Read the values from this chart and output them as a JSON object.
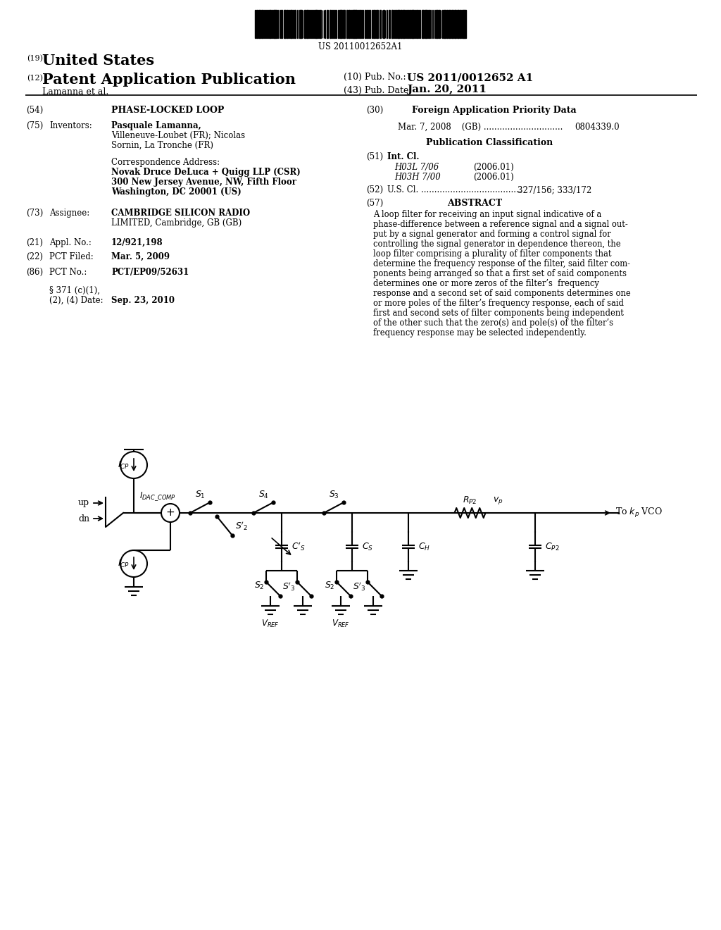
{
  "bg_color": "#ffffff",
  "barcode_number": "US 20110012652A1",
  "header_19": "(19)",
  "united_states": "United States",
  "header_12": "(12)",
  "patent_app_pub": "Patent Application Publication",
  "pub_no_label": "(10) Pub. No.:",
  "pub_no": "US 2011/0012652 A1",
  "pub_date_label": "(43) Pub. Date:",
  "pub_date": "Jan. 20, 2011",
  "inventor_line": "Lamanna et al.",
  "tag54": "(54)",
  "title54": "PHASE-LOCKED LOOP",
  "tag75": "(75)",
  "inventors_label": "Inventors:",
  "inventors_name": "Pasquale Lamanna,",
  "inventors_line2": "Villeneuve-Loubet (FR); Nicolas",
  "inventors_line3": "Sornin, La Tronche (FR)",
  "corr_addr_line1": "Correspondence Address:",
  "corr_addr_line2": "Novak Druce DeLuca + Quigg LLP (CSR)",
  "corr_addr_line3": "300 New Jersey Avenue, NW, Fifth Floor",
  "corr_addr_line4": "Washington, DC 20001 (US)",
  "tag73": "(73)",
  "assignee_label": "Assignee:",
  "assignee_line1": "CAMBRIDGE SILICON RADIO",
  "assignee_line2": "LIMITED, Cambridge, GB (GB)",
  "tag21": "(21)",
  "appl_label": "Appl. No.:",
  "appl_val": "12/921,198",
  "tag22": "(22)",
  "pct_filed_label": "PCT Filed:",
  "pct_filed_val": "Mar. 5, 2009",
  "tag86": "(86)",
  "pct_no_label": "PCT No.:",
  "pct_no_val": "PCT/EP09/52631",
  "par371_line1": "§ 371 (c)(1),",
  "par371_line2": "(2), (4) Date:",
  "par371_val": "Sep. 23, 2010",
  "tag30": "(30)",
  "foreign_title": "Foreign Application Priority Data",
  "foreign_data1": "Mar. 7, 2008    (GB) ..............................",
  "foreign_data2": "0804339.0",
  "pub_class_title": "Publication Classification",
  "tag51": "(51)",
  "int_cl_label": "Int. Cl.",
  "int_cl1": "H03L 7/06",
  "int_cl1_date": "(2006.01)",
  "int_cl2": "H03H 7/00",
  "int_cl2_date": "(2006.01)",
  "tag52": "(52)",
  "us_cl_label": "U.S. Cl. ......................................",
  "us_cl_val": "327/156; 333/172",
  "tag57": "(57)",
  "abstract_title": "ABSTRACT",
  "abstract_lines": [
    "A loop filter for receiving an input signal indicative of a",
    "phase-difference between a reference signal and a signal out-",
    "put by a signal generator and forming a control signal for",
    "controlling the signal generator in dependence thereon, the",
    "loop filter comprising a plurality of filter components that",
    "determine the frequency response of the filter, said filter com-",
    "ponents being arranged so that a first set of said components",
    "determines one or more zeros of the filter’s  frequency",
    "response and a second set of said components determines one",
    "or more poles of the filter’s frequency response, each of said",
    "first and second sets of filter components being independent",
    "of the other such that the zero(s) and pole(s) of the filter’s",
    "frequency response may be selected independently."
  ]
}
